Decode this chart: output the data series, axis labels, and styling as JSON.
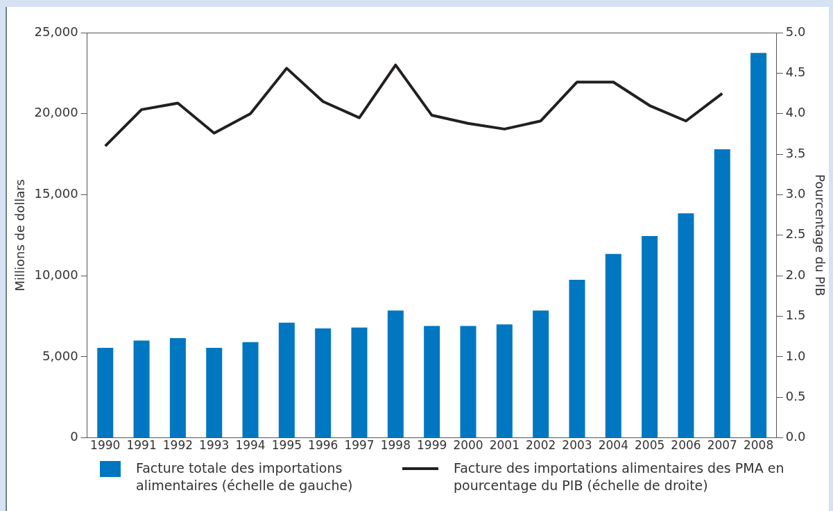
{
  "chart_data": {
    "type": "bar",
    "categories": [
      "1990",
      "1991",
      "1992",
      "1993",
      "1994",
      "1995",
      "1996",
      "1997",
      "1998",
      "1999",
      "2000",
      "2001",
      "2002",
      "2003",
      "2004",
      "2005",
      "2006",
      "2007",
      "2008"
    ],
    "ylabel": "Millions de dollars",
    "y2label": "Pourcentage du PIB",
    "series": [
      {
        "name": "Facture totale des importations alimentaires (échelle de gauche)",
        "color": "#0077c0",
        "values": [
          5550,
          6000,
          6150,
          5550,
          5900,
          7100,
          6750,
          6800,
          7850,
          6900,
          6900,
          7000,
          7850,
          9750,
          11350,
          12450,
          13850,
          17800,
          23750
        ]
      },
      {
        "name": "Facture des importations alimentaires des PMA en pourcentage du PIB (échelle de droite)",
        "type": "line",
        "axis": "y2",
        "color": "#231f20",
        "values": [
          3.6,
          4.05,
          4.13,
          3.76,
          4.0,
          4.56,
          4.15,
          3.95,
          4.6,
          3.98,
          3.88,
          3.81,
          3.91,
          4.39,
          4.39,
          4.1,
          3.91,
          4.25,
          null
        ]
      }
    ],
    "ylim": [
      0,
      25000
    ],
    "yticks": [
      {
        "value": 0,
        "label": "0"
      },
      {
        "value": 5000,
        "label": "5,000"
      },
      {
        "value": 10000,
        "label": "10,000"
      },
      {
        "value": 15000,
        "label": "15,000"
      },
      {
        "value": 20000,
        "label": "20,000"
      },
      {
        "value": 25000,
        "label": "25,000"
      }
    ],
    "y2lim": [
      0,
      5
    ],
    "y2ticks": [
      {
        "value": 0,
        "label": "0.0"
      },
      {
        "value": 0.5,
        "label": "0.5"
      },
      {
        "value": 1,
        "label": "1.0"
      },
      {
        "value": 1.5,
        "label": "1.5"
      },
      {
        "value": 2,
        "label": "2.0"
      },
      {
        "value": 2.5,
        "label": "2.5"
      },
      {
        "value": 3,
        "label": "3.0"
      },
      {
        "value": 3.5,
        "label": "3.5"
      },
      {
        "value": 4,
        "label": "4.0"
      },
      {
        "value": 4.5,
        "label": "4.5"
      },
      {
        "value": 5,
        "label": "5.0"
      }
    ],
    "grid": false,
    "legend": "bottom",
    "marker": "none",
    "line_style": "solid"
  }
}
